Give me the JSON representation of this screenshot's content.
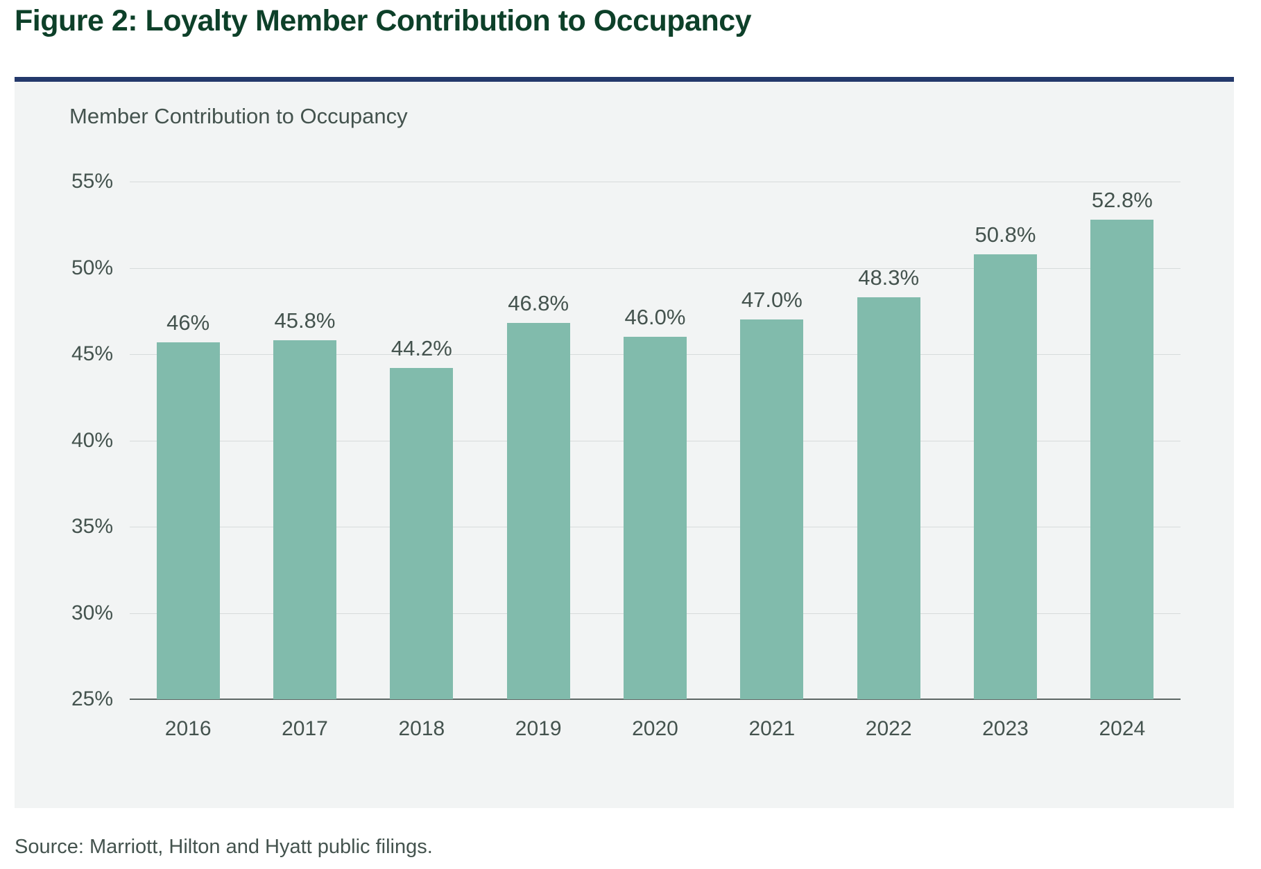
{
  "figure_title": "Figure 2: Loyalty Member Contribution to Occupancy",
  "source_note": "Source: Marriott, Hilton and Hyatt public filings.",
  "colors": {
    "title_green": "#0d4029",
    "rule_navy": "#24396b",
    "panel_bg": "#f2f4f4",
    "bar_teal": "#81bbac",
    "label_slate": "#44534e",
    "gridline_gray": "#d7dbdb",
    "axis_gray": "#5c6664"
  },
  "chart_data": {
    "type": "bar",
    "title": "Member Contribution to Occupancy",
    "categories": [
      "2016",
      "2017",
      "2018",
      "2019",
      "2020",
      "2021",
      "2022",
      "2023",
      "2024"
    ],
    "values": [
      45.7,
      45.8,
      44.2,
      46.8,
      46.0,
      47.0,
      48.3,
      50.8,
      52.8
    ],
    "value_labels": [
      "46%",
      "45.8%",
      "44.2%",
      "46.8%",
      "46.0%",
      "47.0%",
      "48.3%",
      "50.8%",
      "52.8%"
    ],
    "xlabel": "",
    "ylabel": "",
    "ylim": [
      25,
      55
    ],
    "ytick_step": 5,
    "ytick_labels": [
      "55%",
      "50%",
      "45%",
      "40%",
      "35%",
      "30%",
      "25%"
    ],
    "grid": "horizontal-lines",
    "legend": "none"
  }
}
